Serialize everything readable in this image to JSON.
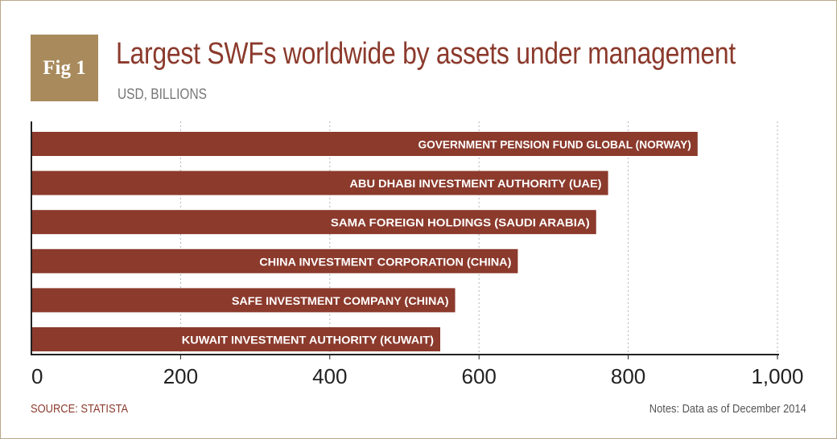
{
  "badge": "Fig 1",
  "colors": {
    "bar": "#8b3a2c",
    "accent": "#a88a5c",
    "grid": "#b5b5b5"
  },
  "footer": {
    "source": "SOURCE: STATISTA",
    "notes": "Notes: Data as of December 2014"
  },
  "chart_data": {
    "type": "bar",
    "orientation": "horizontal",
    "title": "Largest SWFs worldwide by assets under management",
    "subtitle": "USD, BILLIONS",
    "categories": [
      "GOVERNMENT PENSION FUND GLOBAL (NORWAY)",
      "ABU DHABI INVESTMENT AUTHORITY (UAE)",
      "SAMA FOREIGN  HOLDINGS (SAUDI ARABIA)",
      "CHINA INVESTMENT CORPORATION (CHINA)",
      "SAFE INVESTMENT COMPANY (CHINA)",
      "KUWAIT INVESTMENT AUTHORITY (KUWAIT)"
    ],
    "values": [
      893,
      773,
      757,
      652,
      568,
      548
    ],
    "xlim": [
      0,
      1000
    ],
    "ticks": [
      0,
      200,
      400,
      600,
      800,
      1000
    ],
    "tick_labels": [
      "0",
      "200",
      "400",
      "600",
      "800",
      "1,000"
    ],
    "grid": true,
    "grid_style": "dotted vertical",
    "legend": "none"
  }
}
